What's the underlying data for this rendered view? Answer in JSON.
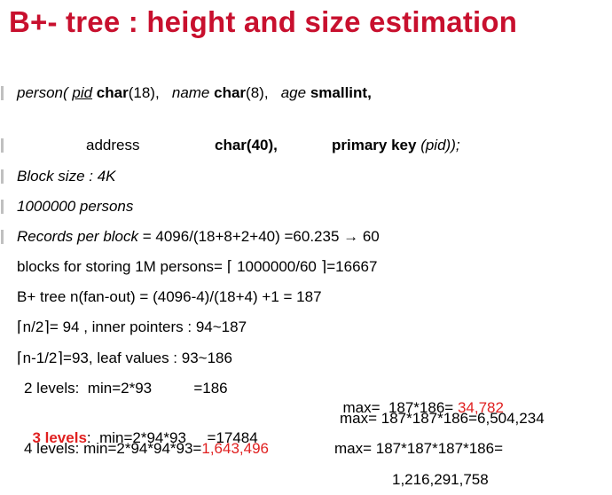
{
  "title": "B+- tree : height and size estimation",
  "schema": {
    "person": "person(",
    "pid": "pid",
    "char18_kw": "char",
    "char18_arg": "(18),",
    "name": "name",
    "char8_kw": "char",
    "char8_arg": "(8),",
    "age": "age",
    "smallint": "smallint,",
    "address": "address",
    "char40": "char(40),",
    "pk": "primary key",
    "pk_arg": "(pid));"
  },
  "lines": {
    "block_size": "Block size : 4K",
    "persons": "1000000 persons",
    "records_label": "Records per block",
    "records_value": " =  4096/(18+8+2+40) =60.235 → 60",
    "blocks_prefix": "blocks for storing 1M persons= ",
    "blocks_lceil": "⌈",
    "blocks_expr": " 1000000/60 ",
    "blocks_rceil": "⌉",
    "blocks_suffix": "=16667",
    "fanout": "B+ tree n(fan-out)  = (4096-4)/(18+4) +1 = 187",
    "inner_lceil": "⌈",
    "inner_expr": "n/2",
    "inner_rceil": "⌉",
    "inner_rest": "= 94 , inner pointers  :  94~187",
    "leaf_lceil": "⌈",
    "leaf_expr": "n-1/2",
    "leaf_rceil": "⌉",
    "leaf_rest": "=93, leaf values    :  93~186",
    "l2_min": "2 levels:  min=2*93          =186",
    "l2_max_label": "max=  187*186= ",
    "l2_max_val": "34,782",
    "l3_label": "3 levels",
    "l3_min": ":  min=2*94*93     =17484",
    "l3_max": "max= 187*187*186=6,504,234",
    "l4_min_label": "4 levels:  min=2*94*94*93=",
    "l4_min_val": "1,643,496",
    "l4_max": "max= 187*187*187*186=",
    "l4_max_cont": "1,216,291,758"
  },
  "colors": {
    "title": "#c8102e",
    "highlight": "#e02020",
    "bullet": "#c0c0c0"
  }
}
